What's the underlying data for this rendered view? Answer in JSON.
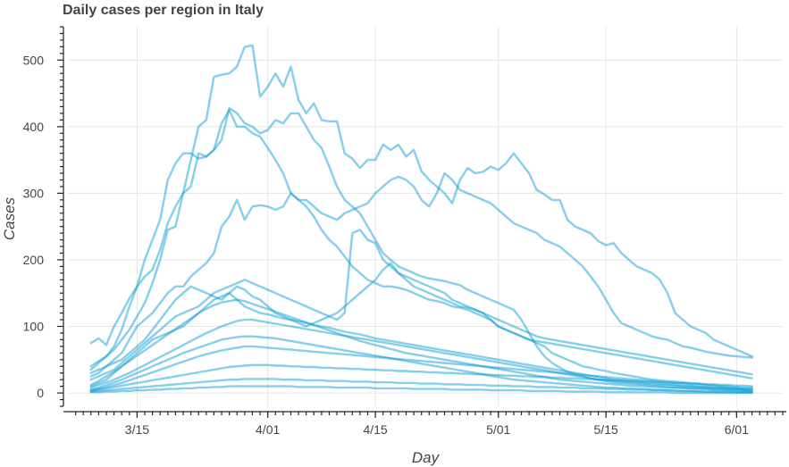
{
  "chart_data": {
    "type": "line",
    "title": "Daily cases per region in Italy",
    "xlabel": "Day",
    "ylabel": "Cases",
    "x_start": "2020-03-09",
    "x_end": "2020-06-03",
    "xlim": [
      "2020-03-06",
      "2020-06-07"
    ],
    "ylim": [
      -20,
      550
    ],
    "grid": true,
    "line_color": "#0d9dd6",
    "line_opacity": 0.5,
    "xtick_labels": [
      {
        "date": "2020-03-15",
        "label": "3/15"
      },
      {
        "date": "2020-04-01",
        "label": "4/01"
      },
      {
        "date": "2020-04-15",
        "label": "4/15"
      },
      {
        "date": "2020-05-01",
        "label": "5/01"
      },
      {
        "date": "2020-05-15",
        "label": "5/15"
      },
      {
        "date": "2020-06-01",
        "label": "6/01"
      }
    ],
    "yticks": [
      0,
      100,
      200,
      300,
      400,
      500
    ],
    "ytick_labels": [
      "0",
      "100",
      "200",
      "300",
      "400",
      "500"
    ],
    "series": [
      {
        "values": [
          75,
          82,
          72,
          100,
          120,
          142,
          160,
          200,
          230,
          260,
          320,
          345,
          360,
          360,
          352,
          355,
          365,
          380,
          428,
          420,
          405,
          400,
          390,
          395,
          410,
          405,
          420,
          420,
          400,
          380,
          368,
          340,
          310,
          290,
          280,
          270,
          250,
          230,
          210,
          200,
          190,
          185,
          180,
          175,
          172,
          170,
          168,
          165,
          162,
          155,
          150,
          145,
          140,
          135,
          130,
          125,
          110,
          90,
          70,
          55,
          45,
          38,
          32,
          28,
          25,
          22,
          20,
          19,
          18,
          17,
          16,
          15,
          14,
          13,
          12,
          12,
          11,
          10,
          10,
          9,
          9,
          8,
          8,
          7,
          7,
          6,
          6
        ]
      },
      {
        "values": [
          40,
          48,
          55,
          70,
          95,
          130,
          160,
          175,
          185,
          215,
          255,
          280,
          300,
          350,
          400,
          410,
          475,
          478,
          480,
          490,
          520,
          522,
          445,
          460,
          480,
          460,
          490,
          440,
          420,
          435,
          410,
          408,
          408,
          360,
          352,
          338,
          350,
          350,
          373,
          365,
          373,
          355,
          365,
          333,
          320,
          310,
          300,
          285,
          320,
          338,
          330,
          332,
          340,
          335,
          345,
          360,
          345,
          330,
          305,
          298,
          290,
          290,
          260,
          250,
          245,
          240,
          228,
          222,
          225,
          210,
          200,
          190,
          185,
          180,
          170,
          150,
          120,
          110,
          100,
          95,
          90,
          80,
          75,
          70,
          65,
          60,
          55
        ]
      },
      {
        "values": [
          35,
          45,
          55,
          65,
          80,
          95,
          115,
          135,
          165,
          200,
          245,
          250,
          300,
          310,
          360,
          355,
          365,
          405,
          425,
          400,
          400,
          390,
          385,
          368,
          350,
          330,
          300,
          290,
          280,
          265,
          245,
          230,
          220,
          205,
          190,
          180,
          170,
          165,
          160,
          160,
          158,
          155,
          150,
          145,
          140,
          138,
          135,
          130,
          128,
          125,
          120,
          115,
          110,
          100,
          95,
          90,
          85,
          80,
          75,
          70,
          60,
          55,
          50,
          45,
          40,
          38,
          35,
          33,
          30,
          28,
          26,
          24,
          22,
          20,
          19,
          18,
          17,
          16,
          15,
          14,
          13,
          12,
          11,
          10,
          9,
          8,
          8
        ]
      },
      {
        "values": [
          25,
          30,
          40,
          50,
          60,
          80,
          100,
          110,
          120,
          135,
          150,
          160,
          160,
          175,
          185,
          195,
          210,
          250,
          265,
          290,
          260,
          280,
          282,
          280,
          275,
          280,
          300,
          290,
          290,
          280,
          270,
          265,
          260,
          270,
          275,
          280,
          285,
          300,
          310,
          320,
          325,
          320,
          310,
          290,
          280,
          300,
          330,
          320,
          305,
          300,
          295,
          290,
          285,
          275,
          265,
          255,
          250,
          245,
          240,
          230,
          225,
          220,
          210,
          200,
          190,
          175,
          160,
          140,
          120,
          105,
          100,
          95,
          90,
          85,
          82,
          80,
          75,
          70,
          68,
          65,
          62,
          60,
          58,
          56,
          55,
          54,
          53
        ]
      },
      {
        "values": [
          20,
          25,
          30,
          35,
          45,
          55,
          65,
          75,
          85,
          95,
          105,
          115,
          120,
          125,
          130,
          140,
          150,
          155,
          160,
          165,
          170,
          165,
          160,
          155,
          150,
          145,
          140,
          135,
          130,
          125,
          120,
          115,
          110,
          120,
          240,
          245,
          230,
          225,
          200,
          190,
          180,
          175,
          170,
          165,
          160,
          155,
          150,
          140,
          135,
          130,
          125,
          120,
          110,
          100,
          95,
          90,
          85,
          80,
          78,
          76,
          74,
          72,
          70,
          68,
          66,
          64,
          62,
          60,
          58,
          56,
          54,
          52,
          50,
          48,
          46,
          44,
          42,
          40,
          38,
          36,
          34,
          32,
          30,
          28,
          26,
          24,
          22
        ]
      },
      {
        "values": [
          30,
          35,
          40,
          45,
          50,
          60,
          70,
          80,
          95,
          110,
          125,
          140,
          150,
          160,
          155,
          150,
          145,
          140,
          150,
          160,
          155,
          145,
          140,
          130,
          120,
          115,
          110,
          105,
          100,
          105,
          110,
          115,
          120,
          130,
          140,
          150,
          160,
          170,
          185,
          195,
          180,
          170,
          160,
          155,
          150,
          145,
          140,
          135,
          130,
          128,
          125,
          120,
          115,
          110,
          105,
          100,
          95,
          90,
          85,
          82,
          80,
          78,
          76,
          74,
          72,
          70,
          68,
          66,
          64,
          62,
          60,
          58,
          56,
          54,
          52,
          50,
          48,
          46,
          44,
          42,
          40,
          38,
          36,
          34,
          32,
          30,
          28
        ]
      },
      {
        "values": [
          10,
          15,
          20,
          30,
          40,
          50,
          60,
          70,
          80,
          85,
          90,
          95,
          100,
          110,
          120,
          130,
          140,
          145,
          150,
          140,
          130,
          125,
          120,
          118,
          115,
          112,
          110,
          108,
          105,
          102,
          100,
          98,
          95,
          92,
          90,
          88,
          85,
          82,
          80,
          78,
          76,
          74,
          72,
          70,
          68,
          66,
          64,
          62,
          60,
          58,
          56,
          54,
          52,
          50,
          48,
          46,
          44,
          42,
          40,
          38,
          36,
          34,
          32,
          30,
          28,
          26,
          24,
          22,
          20,
          19,
          18,
          17,
          16,
          15,
          14,
          13,
          12,
          11,
          10,
          9,
          8,
          7,
          7,
          6,
          6,
          5,
          5
        ]
      },
      {
        "values": [
          12,
          18,
          25,
          32,
          40,
          48,
          56,
          64,
          72,
          80,
          88,
          96,
          104,
          112,
          120,
          126,
          132,
          136,
          138,
          140,
          138,
          134,
          130,
          126,
          122,
          118,
          114,
          110,
          106,
          102,
          98,
          94,
          90,
          86,
          82,
          78,
          75,
          72,
          69,
          66,
          63,
          60,
          58,
          56,
          54,
          52,
          50,
          48,
          46,
          44,
          42,
          40,
          38,
          36,
          34,
          32,
          30,
          28,
          26,
          24,
          22,
          20,
          19,
          18,
          17,
          16,
          15,
          14,
          13,
          12,
          11,
          10,
          10,
          9,
          9,
          8,
          8,
          7,
          7,
          6,
          6,
          5,
          5,
          4,
          4,
          3,
          3
        ]
      },
      {
        "values": [
          8,
          12,
          16,
          20,
          25,
          30,
          36,
          42,
          48,
          54,
          60,
          66,
          72,
          78,
          84,
          90,
          95,
          100,
          104,
          108,
          110,
          110,
          108,
          106,
          104,
          102,
          100,
          98,
          96,
          94,
          92,
          90,
          88,
          86,
          84,
          82,
          80,
          78,
          76,
          74,
          72,
          70,
          68,
          66,
          64,
          62,
          60,
          58,
          56,
          54,
          52,
          50,
          48,
          46,
          44,
          42,
          40,
          38,
          36,
          34,
          32,
          30,
          28,
          26,
          24,
          22,
          20,
          18,
          16,
          15,
          14,
          13,
          12,
          11,
          10,
          9,
          8,
          8,
          7,
          7,
          6,
          6,
          5,
          5,
          4,
          4,
          3
        ]
      },
      {
        "values": [
          5,
          8,
          12,
          16,
          20,
          25,
          30,
          35,
          40,
          45,
          50,
          55,
          60,
          64,
          68,
          72,
          76,
          80,
          82,
          84,
          85,
          85,
          84,
          83,
          82,
          80,
          78,
          76,
          74,
          72,
          70,
          68,
          66,
          64,
          62,
          60,
          58,
          56,
          54,
          52,
          50,
          48,
          46,
          44,
          42,
          40,
          38,
          36,
          34,
          32,
          30,
          28,
          26,
          24,
          22,
          20,
          19,
          18,
          17,
          16,
          15,
          14,
          13,
          12,
          11,
          10,
          9,
          8,
          8,
          7,
          7,
          6,
          6,
          5,
          5,
          4,
          4,
          3,
          3,
          3,
          2,
          2,
          2,
          2,
          1,
          1,
          1
        ]
      },
      {
        "values": [
          4,
          6,
          9,
          12,
          15,
          19,
          23,
          27,
          31,
          35,
          39,
          43,
          47,
          51,
          55,
          58,
          61,
          64,
          66,
          68,
          70,
          70,
          69,
          68,
          67,
          66,
          65,
          64,
          63,
          62,
          61,
          60,
          59,
          58,
          57,
          56,
          55,
          54,
          53,
          52,
          51,
          50,
          49,
          48,
          47,
          46,
          45,
          44,
          43,
          42,
          41,
          40,
          39,
          38,
          37,
          36,
          35,
          34,
          33,
          32,
          31,
          30,
          29,
          28,
          27,
          26,
          25,
          24,
          23,
          22,
          21,
          20,
          19,
          18,
          17,
          16,
          15,
          14,
          13,
          12,
          11,
          10,
          9,
          8,
          7,
          6,
          5
        ]
      },
      {
        "values": [
          3,
          5,
          7,
          9,
          11,
          13,
          15,
          17,
          19,
          21,
          23,
          25,
          27,
          29,
          31,
          33,
          35,
          37,
          39,
          40,
          41,
          42,
          42,
          42,
          41,
          41,
          40,
          40,
          39,
          39,
          38,
          38,
          37,
          37,
          36,
          36,
          35,
          35,
          34,
          34,
          33,
          33,
          32,
          32,
          31,
          31,
          30,
          30,
          29,
          29,
          28,
          28,
          27,
          27,
          26,
          26,
          25,
          25,
          24,
          24,
          23,
          23,
          22,
          22,
          21,
          21,
          20,
          20,
          19,
          19,
          18,
          18,
          17,
          17,
          16,
          16,
          15,
          15,
          14,
          14,
          13,
          13,
          12,
          12,
          11,
          11,
          10
        ]
      },
      {
        "values": [
          2,
          3,
          4,
          5,
          6,
          7,
          8,
          9,
          10,
          11,
          12,
          13,
          14,
          15,
          16,
          17,
          18,
          19,
          20,
          20,
          21,
          21,
          21,
          21,
          21,
          20,
          20,
          20,
          19,
          19,
          19,
          18,
          18,
          18,
          17,
          17,
          17,
          16,
          16,
          16,
          15,
          15,
          15,
          14,
          14,
          14,
          13,
          13,
          13,
          12,
          12,
          12,
          11,
          11,
          11,
          10,
          10,
          10,
          9,
          9,
          9,
          8,
          8,
          8,
          7,
          7,
          7,
          6,
          6,
          6,
          5,
          5,
          5,
          4,
          4,
          4,
          3,
          3,
          3,
          2,
          2,
          2,
          1,
          1,
          1,
          1,
          1
        ]
      },
      {
        "values": [
          1,
          1,
          2,
          2,
          3,
          3,
          4,
          4,
          5,
          5,
          6,
          6,
          7,
          7,
          8,
          8,
          9,
          9,
          10,
          10,
          10,
          10,
          10,
          10,
          10,
          10,
          10,
          9,
          9,
          9,
          9,
          9,
          8,
          8,
          8,
          8,
          8,
          7,
          7,
          7,
          7,
          7,
          6,
          6,
          6,
          6,
          6,
          5,
          5,
          5,
          5,
          5,
          4,
          4,
          4,
          4,
          4,
          3,
          3,
          3,
          3,
          3,
          2,
          2,
          2,
          2,
          2,
          1,
          1,
          1,
          1,
          1,
          1,
          1,
          1,
          1,
          0,
          0,
          0,
          0,
          0,
          0,
          0,
          0,
          0,
          0,
          0
        ]
      }
    ]
  }
}
